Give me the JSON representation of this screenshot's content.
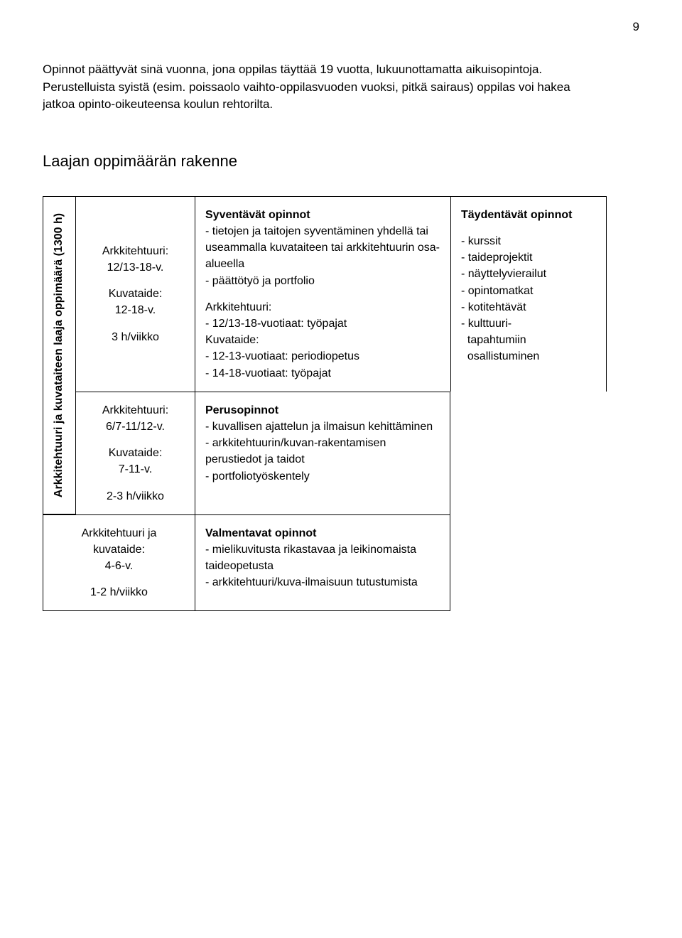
{
  "page_number": "9",
  "intro_paragraph": "Opinnot päättyvät sinä vuonna, jona oppilas täyttää 19 vuotta, lukuunottamatta aikuisopintoja. Perustelluista syistä (esim. poissaolo vaihto-oppilasvuoden vuoksi, pitkä sairaus) oppilas voi hakea jatkoa opinto-oikeuteensa koulun rehtorilta.",
  "section_heading": "Laajan oppimäärän rakenne",
  "vertical_label": "Arkkitehtuuri ja kuvataiteen laaja oppimäärä (1300 h)",
  "row1": {
    "left": {
      "line1": "Arkkitehtuuri:",
      "line2": "12/13-18-v.",
      "line3": "Kuvataide:",
      "line4": "12-18-v.",
      "line5": "3 h/viikko"
    },
    "mid": {
      "heading": "Syventävät opinnot",
      "b1": "- tietojen ja taitojen syventäminen yhdellä tai useammalla kuvataiteen tai arkkitehtuurin osa-alueella",
      "b2": "- päättötyö ja portfolio",
      "sub1_label": "Arkkitehtuuri:",
      "sub1_item": "- 12/13-18-vuotiaat: työpajat",
      "sub2_label": "Kuvataide:",
      "sub2_item1": "- 12-13-vuotiaat: periodiopetus",
      "sub2_item2": "- 14-18-vuotiaat: työpajat"
    },
    "right": {
      "heading": "Täydentävät opinnot",
      "b1": "- kurssit",
      "b2": "- taideprojektit",
      "b3": "- näyttelyvierailut",
      "b4": "- opintomatkat",
      "b5": "- kotitehtävät",
      "b6": "- kulttuuri-",
      "b6b": "  tapahtumiin",
      "b6c": "  osallistuminen"
    }
  },
  "row2": {
    "left": {
      "line1": "Arkkitehtuuri:",
      "line2": "6/7-11/12-v.",
      "line3": "Kuvataide:",
      "line4": "7-11-v.",
      "line5": "2-3 h/viikko"
    },
    "mid": {
      "heading": "Perusopinnot",
      "b1": "- kuvallisen ajattelun ja ilmaisun kehittäminen",
      "b2": "- arkkitehtuurin/kuvan-rakentamisen perustiedot ja taidot",
      "b3": "- portfoliotyöskentely"
    }
  },
  "row3": {
    "left": {
      "line1": "Arkkitehtuuri  ja",
      "line2": "kuvataide:",
      "line3": "4-6-v.",
      "line4": "1-2 h/viikko"
    },
    "mid": {
      "heading": "Valmentavat opinnot",
      "b1": "- mielikuvitusta rikastavaa ja leikinomaista taideopetusta",
      "b2": "- arkkitehtuuri/kuva-ilmaisuun tutustumista"
    }
  }
}
